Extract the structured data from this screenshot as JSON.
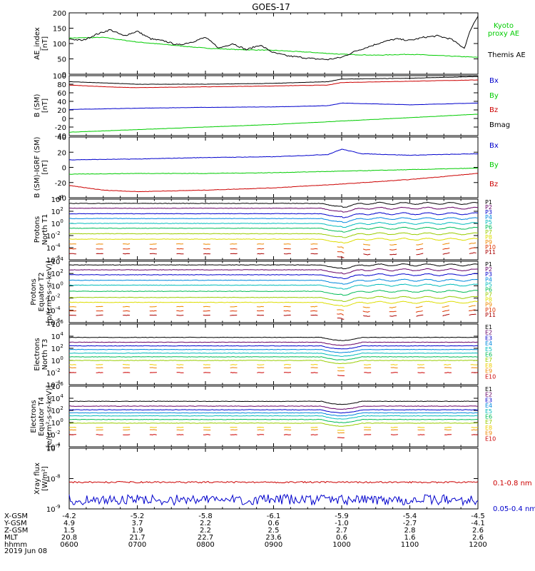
{
  "title": "GOES-17",
  "date": "2019 Jun 08",
  "ephemeris": {
    "rows": [
      {
        "label": "X-GSM",
        "values": [
          "-4.2",
          "-5.2",
          "-5.8",
          "-6.1",
          "-5.9",
          "-5.4",
          "-4.5"
        ]
      },
      {
        "label": "Y-GSM",
        "values": [
          "4.9",
          "3.7",
          "2.2",
          "0.6",
          "-1.0",
          "-2.7",
          "-4.1"
        ]
      },
      {
        "label": "Z-GSM",
        "values": [
          "1.5",
          "1.9",
          "2.2",
          "2.5",
          "2.7",
          "2.8",
          "2.6"
        ]
      },
      {
        "label": "MLT",
        "values": [
          "20.8",
          "21.7",
          "22.7",
          "23.6",
          "0.6",
          "1.6",
          "2.6"
        ]
      },
      {
        "label": "hhmm",
        "values": [
          "0600",
          "0700",
          "0800",
          "0900",
          "1000",
          "1100",
          "1200"
        ]
      }
    ]
  },
  "colors": {
    "black": "#000000",
    "green": "#00cc00",
    "blue": "#0000cc",
    "red": "#cc0000"
  },
  "chart_data": [
    {
      "type": "line",
      "ylabel": [
        "AE_index",
        "[nT]"
      ],
      "ylim": [
        0,
        200
      ],
      "yticks": [
        "0",
        "50",
        "100",
        "150",
        "200"
      ],
      "xlim": [
        6,
        12
      ],
      "series": [
        {
          "name": "Kyoto proxy AE",
          "color": "#00cc00",
          "x": [
            6.0,
            6.5,
            7.0,
            7.5,
            8.0,
            8.5,
            9.0,
            9.5,
            10.0,
            10.5,
            11.0,
            11.5,
            12.0
          ],
          "values": [
            118,
            120,
            105,
            95,
            85,
            80,
            78,
            72,
            65,
            62,
            65,
            60,
            55
          ]
        },
        {
          "name": "Themis AE",
          "color": "#000000",
          "x": [
            6.0,
            6.2,
            6.4,
            6.6,
            6.8,
            7.0,
            7.2,
            7.4,
            7.6,
            7.8,
            8.0,
            8.2,
            8.4,
            8.6,
            8.8,
            9.0,
            9.2,
            9.4,
            9.6,
            9.8,
            10.0,
            10.2,
            10.4,
            10.6,
            10.8,
            11.0,
            11.2,
            11.4,
            11.6,
            11.8,
            11.9,
            12.0
          ],
          "values": [
            115,
            110,
            130,
            145,
            125,
            140,
            115,
            108,
            95,
            105,
            120,
            85,
            100,
            80,
            95,
            70,
            60,
            55,
            50,
            48,
            55,
            75,
            90,
            105,
            115,
            110,
            120,
            125,
            115,
            85,
            150,
            190
          ]
        }
      ]
    },
    {
      "type": "line",
      "ylabel": [
        "B (SM)",
        "[nT]"
      ],
      "ylim": [
        -40,
        100
      ],
      "yticks": [
        "-40",
        "-20",
        "0",
        "20",
        "40",
        "60",
        "80",
        "100"
      ],
      "xlim": [
        6,
        12
      ],
      "series": [
        {
          "name": "Bx",
          "color": "#0000cc",
          "x": [
            6,
            7,
            8,
            9,
            9.8,
            10.0,
            10.5,
            11,
            12
          ],
          "values": [
            21,
            24,
            26,
            27,
            30,
            36,
            34,
            32,
            36
          ]
        },
        {
          "name": "By",
          "color": "#00cc00",
          "x": [
            6,
            7,
            8,
            9,
            10,
            11,
            12
          ],
          "values": [
            -32,
            -26,
            -20,
            -14,
            -6,
            2,
            10
          ]
        },
        {
          "name": "Bz",
          "color": "#cc0000",
          "x": [
            6,
            6.7,
            7,
            8,
            9,
            9.8,
            10,
            11,
            12
          ],
          "values": [
            78,
            73,
            72,
            74,
            76,
            78,
            84,
            87,
            90
          ]
        },
        {
          "name": "Bmag",
          "color": "#000000",
          "x": [
            6,
            7,
            8,
            9,
            9.8,
            10,
            11,
            12
          ],
          "values": [
            86,
            80,
            80,
            82,
            86,
            92,
            94,
            98
          ]
        }
      ]
    },
    {
      "type": "line",
      "ylabel": [
        "B (SM)-IGRF (SM)",
        "[nT]"
      ],
      "ylim": [
        -40,
        40
      ],
      "yticks": [
        "-40",
        "-20",
        "0",
        "20",
        "40"
      ],
      "xlim": [
        6,
        12
      ],
      "series": [
        {
          "name": "Bx",
          "color": "#0000cc",
          "x": [
            6,
            7,
            8,
            9,
            9.8,
            10.0,
            10.3,
            11,
            12
          ],
          "values": [
            10,
            11,
            13,
            14,
            17,
            24,
            18,
            16,
            18
          ]
        },
        {
          "name": "By",
          "color": "#00cc00",
          "x": [
            6,
            7,
            8,
            9,
            10,
            11,
            12
          ],
          "values": [
            -9,
            -8,
            -8,
            -7,
            -5,
            -3,
            -1
          ]
        },
        {
          "name": "Bz",
          "color": "#cc0000",
          "x": [
            6,
            6.5,
            7,
            7.5,
            8,
            9,
            10,
            11,
            12
          ],
          "values": [
            -24,
            -30,
            -32,
            -31,
            -30,
            -27,
            -22,
            -16,
            -8
          ]
        }
      ]
    },
    {
      "type": "line",
      "ylabel": [
        "Protons",
        "North T1"
      ],
      "ylog": true,
      "ylim_exp": [
        -6,
        4
      ],
      "yticks": [
        "-6",
        "-4",
        "-2",
        "0",
        "2",
        "4"
      ],
      "xlim": [
        6,
        12
      ],
      "series": [
        {
          "name": "P1",
          "color": "#000000",
          "level": 3.3
        },
        {
          "name": "P2",
          "color": "#660066",
          "level": 2.5
        },
        {
          "name": "P3",
          "color": "#0000cc",
          "level": 1.6
        },
        {
          "name": "P4",
          "color": "#0088dd",
          "level": 0.8
        },
        {
          "name": "P5",
          "color": "#00bbbb",
          "level": 0.0
        },
        {
          "name": "P6",
          "color": "#00bb55",
          "level": -0.8
        },
        {
          "name": "P7",
          "color": "#99cc00",
          "level": -1.7
        },
        {
          "name": "P8",
          "color": "#dddd00",
          "level": -2.6
        },
        {
          "name": "P9",
          "color": "#ee8800",
          "level": -3.4
        },
        {
          "name": "P10",
          "color": "#dd3300",
          "level": -4.2
        },
        {
          "name": "P11",
          "color": "#aa0000",
          "level": -5.0
        }
      ]
    },
    {
      "type": "line",
      "ylabel": [
        "Protons",
        "Equator T2",
        "[p/(cm²-s-sr-keV)]"
      ],
      "ylog": true,
      "ylim_exp": [
        -6,
        4
      ],
      "yticks": [
        "-6",
        "-4",
        "-2",
        "0",
        "2",
        "4"
      ],
      "xlim": [
        6,
        12
      ],
      "series": [
        {
          "name": "P1",
          "color": "#000000",
          "level": 3.4
        },
        {
          "name": "P2",
          "color": "#660066",
          "level": 2.6
        },
        {
          "name": "P3",
          "color": "#0000cc",
          "level": 1.8
        },
        {
          "name": "P4",
          "color": "#0088dd",
          "level": 0.9
        },
        {
          "name": "P5",
          "color": "#00bbbb",
          "level": 0.1
        },
        {
          "name": "P6",
          "color": "#00bb55",
          "level": -0.9
        },
        {
          "name": "P7",
          "color": "#99cc00",
          "level": -1.9
        },
        {
          "name": "P8",
          "color": "#dddd00",
          "level": -2.7
        },
        {
          "name": "P9",
          "color": "#ee8800",
          "level": -3.4
        },
        {
          "name": "P10",
          "color": "#dd3300",
          "level": -4.1
        },
        {
          "name": "P11",
          "color": "#aa0000",
          "level": -4.8
        }
      ]
    },
    {
      "type": "line",
      "ylabel": [
        "Electrons",
        "North T3"
      ],
      "ylog": true,
      "ylim_exp": [
        -4,
        6
      ],
      "yticks": [
        "-4",
        "-2",
        "0",
        "2",
        "4",
        "6"
      ],
      "xlim": [
        6,
        12
      ],
      "series": [
        {
          "name": "E1",
          "color": "#000000",
          "level": 3.8
        },
        {
          "name": "E2",
          "color": "#660066",
          "level": 3.0
        },
        {
          "name": "E3",
          "color": "#0000cc",
          "level": 2.4
        },
        {
          "name": "E4",
          "color": "#0088dd",
          "level": 1.8
        },
        {
          "name": "E5",
          "color": "#00bbbb",
          "level": 1.2
        },
        {
          "name": "E6",
          "color": "#00bb55",
          "level": 0.6
        },
        {
          "name": "E7",
          "color": "#99cc00",
          "level": 0.0
        },
        {
          "name": "E8",
          "color": "#eecc00",
          "level": -0.7
        },
        {
          "name": "E9",
          "color": "#ee8800",
          "level": -1.2
        },
        {
          "name": "E10",
          "color": "#cc0000",
          "level": -2.0
        }
      ]
    },
    {
      "type": "line",
      "ylabel": [
        "Electrons",
        "Equator T4",
        "[e/(cm²-s-sr-keV)]"
      ],
      "ylog": true,
      "ylim_exp": [
        -4,
        6
      ],
      "yticks": [
        "-4",
        "-2",
        "0",
        "2",
        "4",
        "6"
      ],
      "xlim": [
        6,
        12
      ],
      "series": [
        {
          "name": "E1",
          "color": "#000000",
          "level": 3.5
        },
        {
          "name": "E2",
          "color": "#660066",
          "level": 2.7
        },
        {
          "name": "E3",
          "color": "#0000cc",
          "level": 2.1
        },
        {
          "name": "E4",
          "color": "#0088dd",
          "level": 1.6
        },
        {
          "name": "E5",
          "color": "#00bbbb",
          "level": 1.1
        },
        {
          "name": "E6",
          "color": "#00bb55",
          "level": 0.5
        },
        {
          "name": "E7",
          "color": "#99cc00",
          "level": -0.1
        },
        {
          "name": "E8",
          "color": "#eecc00",
          "level": -0.8
        },
        {
          "name": "E9",
          "color": "#ee8800",
          "level": -1.2
        },
        {
          "name": "E10",
          "color": "#cc0000",
          "level": -2.0
        }
      ]
    },
    {
      "type": "line",
      "ylabel": [
        "Xray flux",
        "[W/m²]"
      ],
      "ylog": true,
      "ylim_exp": [
        -9,
        -7
      ],
      "yticks": [
        "-9",
        "-8",
        "-7"
      ],
      "xlim": [
        6,
        12
      ],
      "series": [
        {
          "name": "0.1-0.8 nm",
          "color": "#cc0000",
          "level": -8.12
        },
        {
          "name": "0.05-0.4 nm",
          "color": "#0000cc",
          "level": -8.7
        }
      ]
    }
  ]
}
